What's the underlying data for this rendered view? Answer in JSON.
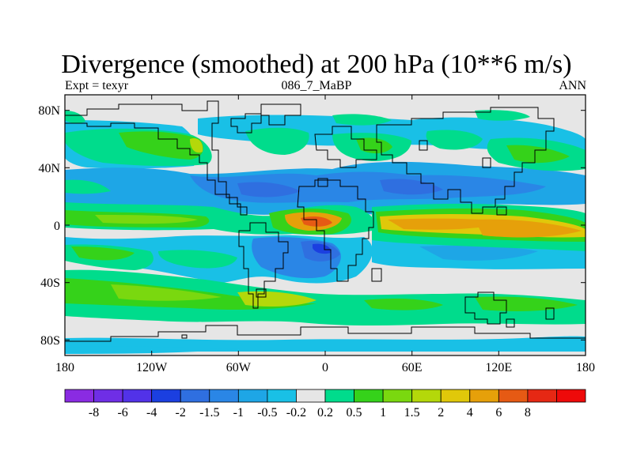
{
  "title": "Divergence (smoothed) at 200 hPa (10**6 m/s)",
  "subtitle_left": "Expt = texyr",
  "subtitle_center": "086_7_MaBP",
  "subtitle_right": "ANN",
  "colors": {
    "missing": "#e6e6e6",
    "outline": "#000000"
  },
  "map": {
    "lon_ticks": [
      "180",
      "120W",
      "60W",
      "0",
      "60E",
      "120E",
      "180"
    ],
    "lat_ticks": [
      "80N",
      "40N",
      "0",
      "40S",
      "80S"
    ],
    "lon_range": [
      -180,
      180
    ],
    "lat_range": [
      -90,
      90
    ]
  },
  "colorbar": {
    "colors": [
      "#8a2be2",
      "#6f2ee6",
      "#5232e8",
      "#1b3fe0",
      "#2f6fe0",
      "#2a86e6",
      "#1ea6e6",
      "#19c0e6",
      "#e6e6e6",
      "#00dc8c",
      "#35d21a",
      "#7ad80f",
      "#b4d80a",
      "#e0c80a",
      "#e6a00a",
      "#e65a14",
      "#e62814",
      "#ee0a0a"
    ],
    "labels": [
      "-8",
      "-6",
      "-4",
      "-2",
      "-1.5",
      "-1",
      "-0.5",
      "-0.2",
      "0.2",
      "0.5",
      "1",
      "1.5",
      "2",
      "4",
      "6",
      "8"
    ]
  }
}
